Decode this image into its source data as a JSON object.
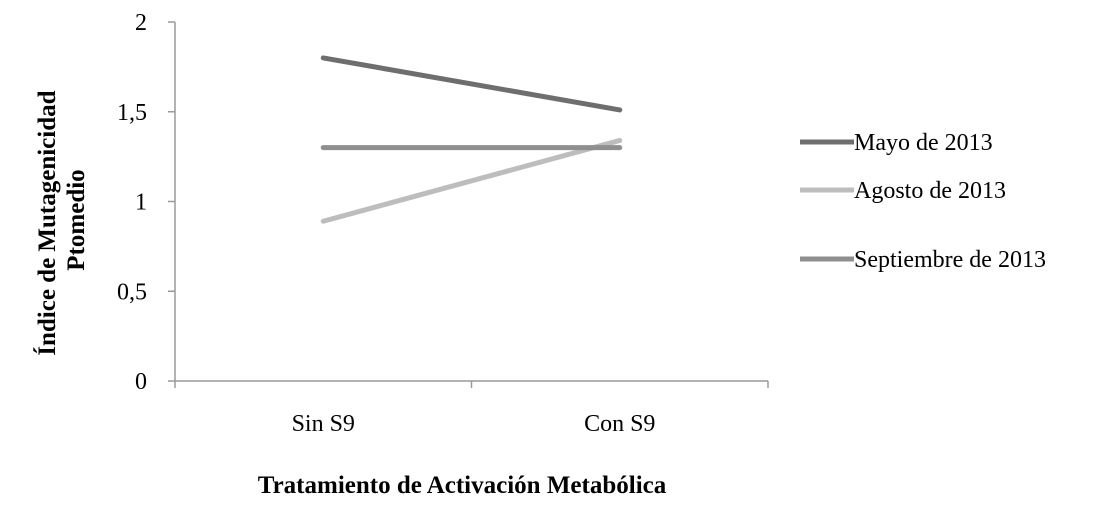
{
  "chart_data": {
    "type": "line",
    "title": "",
    "xlabel": "Tratamiento de Activación Metabólica",
    "ylabel_line1": "Índice de Mutagenicidad",
    "ylabel_line2": "Ptomedio",
    "categories": [
      "Sin S9",
      "Con S9"
    ],
    "ylim": [
      0,
      2
    ],
    "y_ticks": [
      {
        "value": 0,
        "label": "0"
      },
      {
        "value": 0.5,
        "label": "0,5"
      },
      {
        "value": 1,
        "label": "1"
      },
      {
        "value": 1.5,
        "label": "1,5"
      },
      {
        "value": 2,
        "label": "2"
      }
    ],
    "grid": false,
    "legend_position": "right",
    "series": [
      {
        "name": "Mayo de 2013",
        "values": [
          1.8,
          1.51
        ],
        "color": "#6e6e6e"
      },
      {
        "name": "Agosto de 2013",
        "values": [
          0.89,
          1.34
        ],
        "color": "#bdbdbd"
      },
      {
        "name": "Septiembre de 2013",
        "values": [
          1.3,
          1.3
        ],
        "color": "#8f8f8f"
      }
    ]
  }
}
